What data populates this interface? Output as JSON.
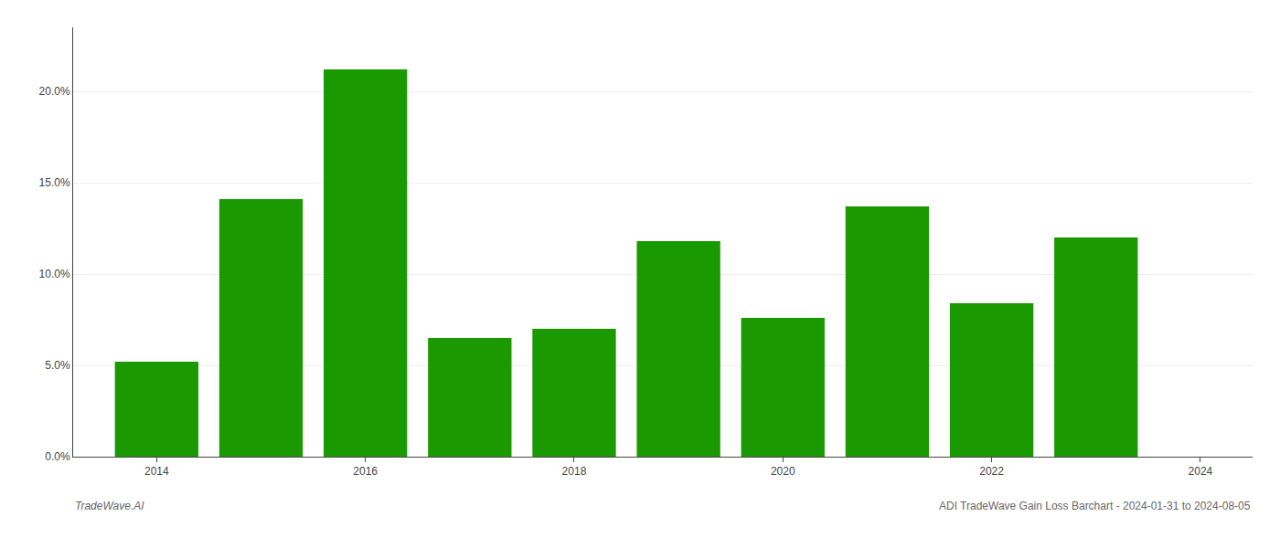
{
  "chart_data": {
    "type": "bar",
    "x": [
      2014,
      2015,
      2016,
      2017,
      2018,
      2019,
      2020,
      2021,
      2022,
      2023
    ],
    "values": [
      0.052,
      0.141,
      0.212,
      0.065,
      0.07,
      0.118,
      0.076,
      0.137,
      0.084,
      0.12
    ],
    "color": "#1a9a00",
    "xlim": [
      2013.2,
      2024.5
    ],
    "xticks": [
      2014,
      2016,
      2018,
      2020,
      2022,
      2024
    ],
    "ylim": [
      0,
      0.235
    ],
    "yticks": [
      {
        "value": 0.0,
        "label": "0.0%"
      },
      {
        "value": 0.05,
        "label": "5.0%"
      },
      {
        "value": 0.1,
        "label": "10.0%"
      },
      {
        "value": 0.15,
        "label": "15.0%"
      },
      {
        "value": 0.2,
        "label": "20.0%"
      }
    ],
    "grid": true,
    "annotations": [
      "TradeWave.AI",
      "ADI TradeWave Gain Loss Barchart - 2024-01-31 to 2024-08-05"
    ]
  }
}
